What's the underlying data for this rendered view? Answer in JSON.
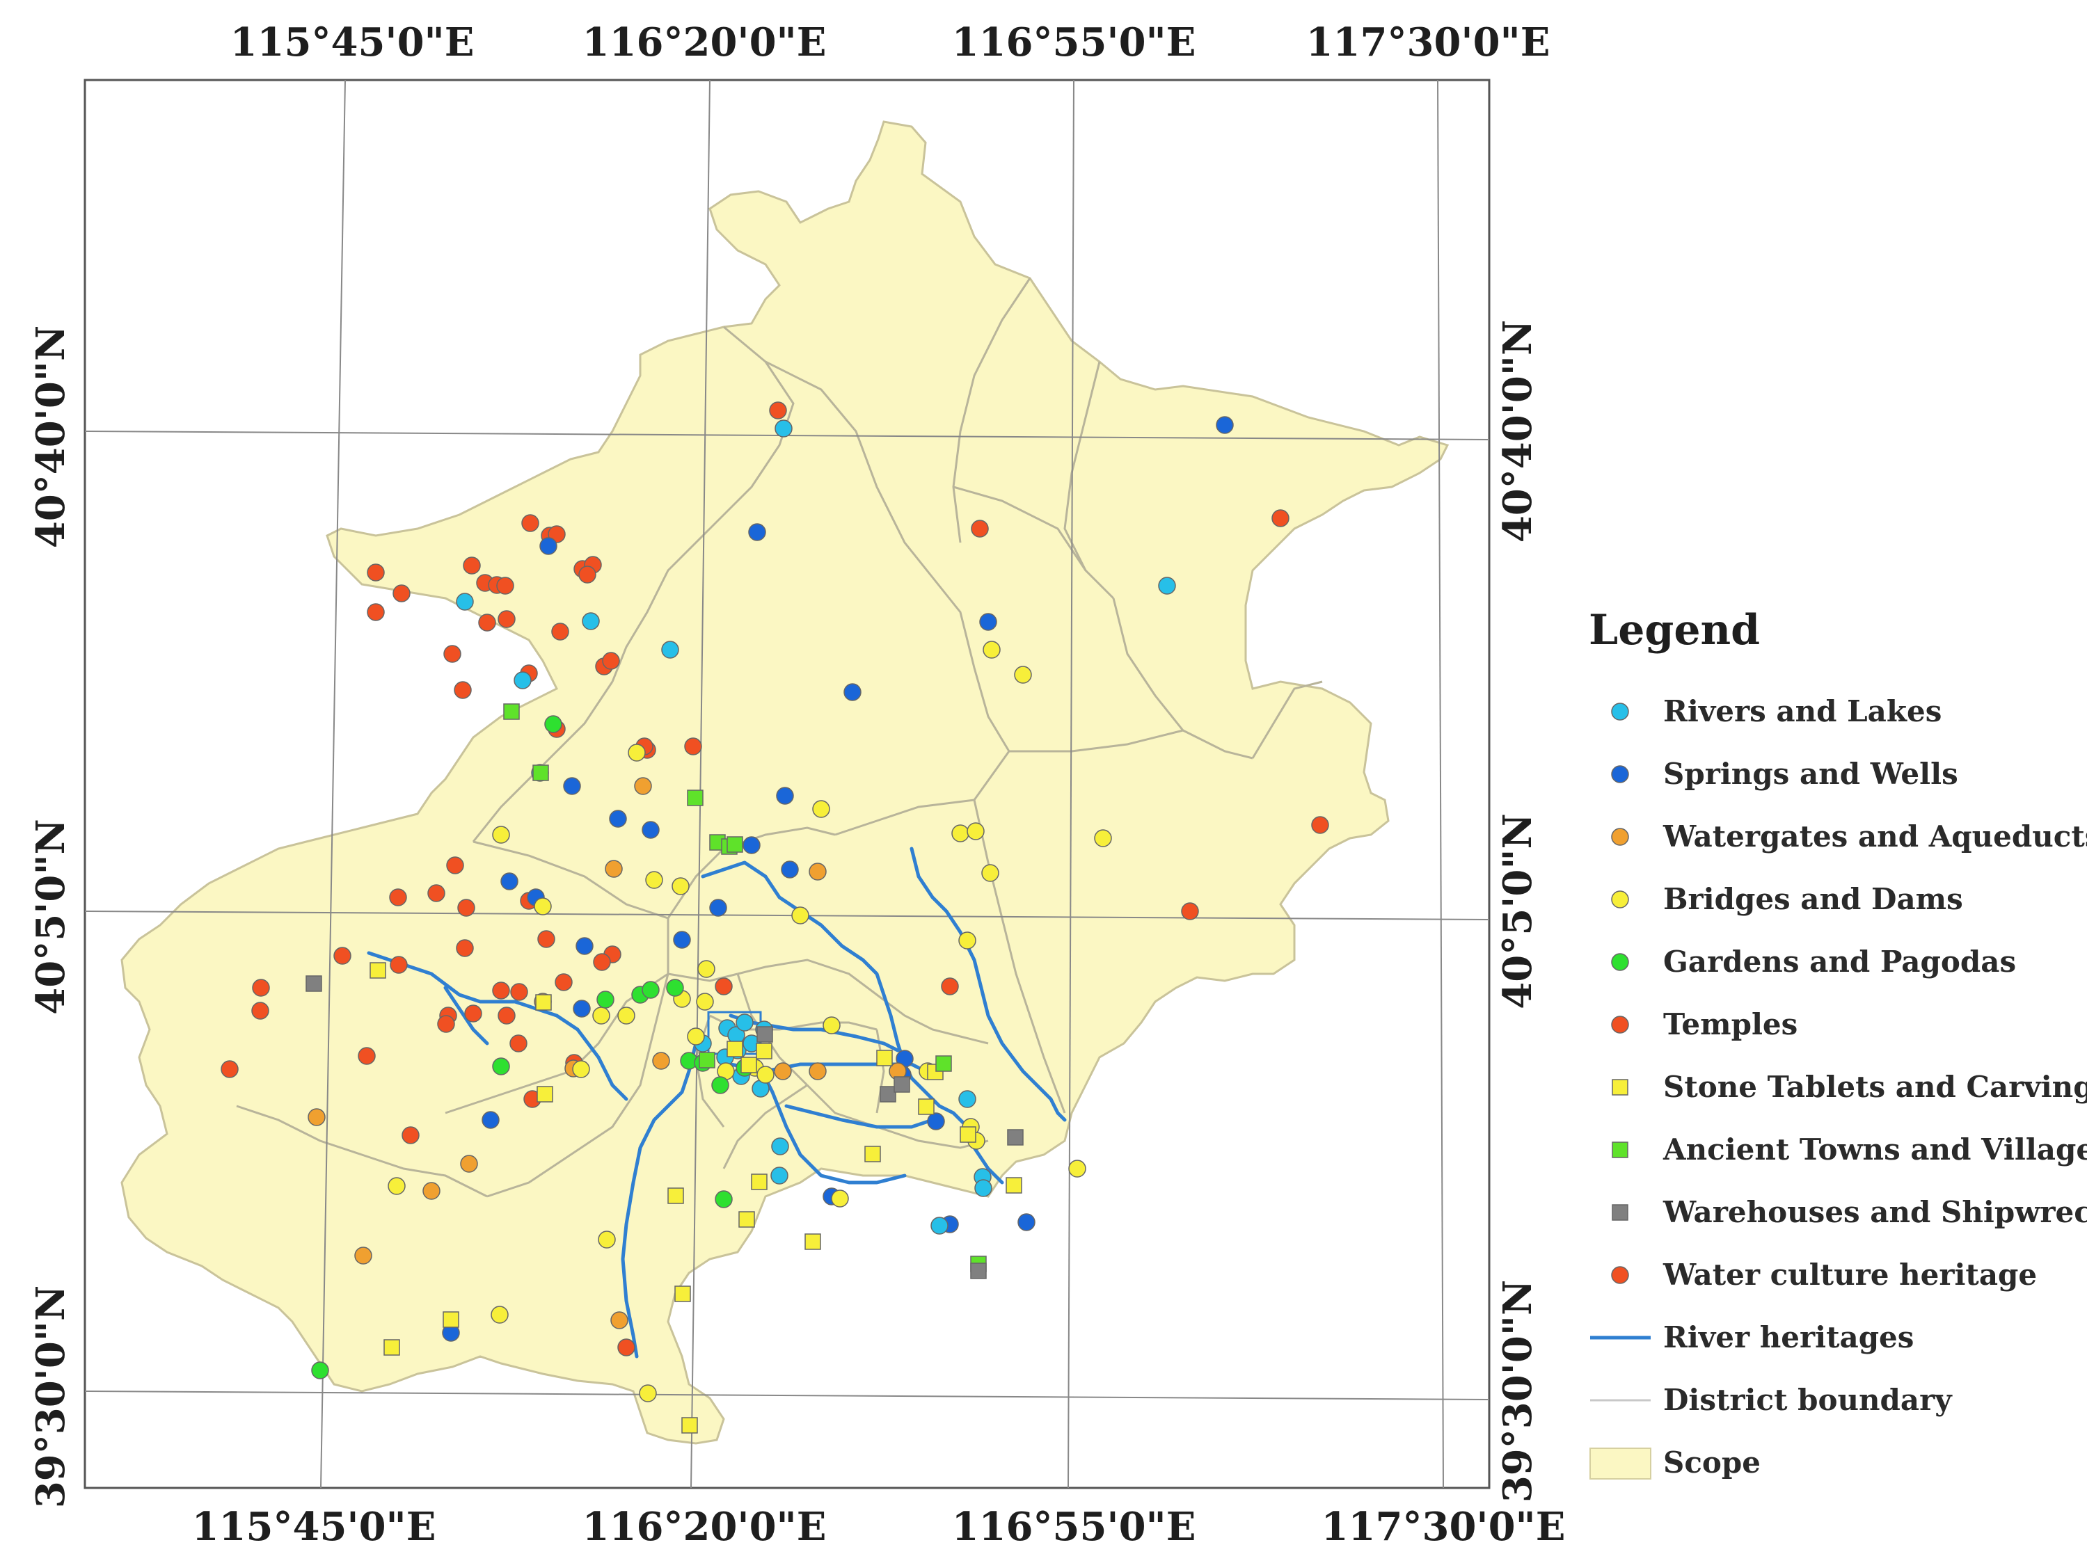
{
  "map": {
    "top_ticks": [
      "115°45'0\"E",
      "116°20'0\"E",
      "116°55'0\"E",
      "117°30'0\"E"
    ],
    "bottom_ticks": [
      "115°45'0\"E",
      "116°20'0\"E",
      "116°55'0\"E",
      "117°30'0\"E"
    ],
    "left_ticks": [
      "40°40'0\"N",
      "40°5'0\"N",
      "39°30'0\"N"
    ],
    "right_ticks": [
      "40°40'0\"N",
      "40°5'0\"N",
      "39°30'0\"N"
    ],
    "colors": {
      "scope_fill": "#fbf7c3",
      "district_line": "#b8b49a",
      "river": "#2f7fd1",
      "grid": "#888888"
    }
  },
  "legend": {
    "title": "Legend",
    "items": [
      {
        "label": "Rivers and Lakes",
        "symbol": "circle",
        "color": "#27bfe8"
      },
      {
        "label": "Springs and Wells",
        "symbol": "circle",
        "color": "#1a66d8"
      },
      {
        "label": "Watergates and Aqueducts",
        "symbol": "circle",
        "color": "#f0a030"
      },
      {
        "label": "Bridges and Dams",
        "symbol": "circle",
        "color": "#f7ef3a"
      },
      {
        "label": "Gardens and Pagodas",
        "symbol": "circle",
        "color": "#2ee030"
      },
      {
        "label": "Temples",
        "symbol": "circle",
        "color": "#f05022"
      },
      {
        "label": "Stone Tablets and Carvings",
        "symbol": "square",
        "color": "#f7ef3a"
      },
      {
        "label": "Ancient Towns and Villages",
        "symbol": "square",
        "color": "#5fe22a"
      },
      {
        "label": "Warehouses and Shipwrecks",
        "symbol": "square",
        "color": "#808080"
      },
      {
        "label": "Water culture heritage",
        "symbol": "circle",
        "color": "#f05022"
      },
      {
        "label": "River heritages",
        "symbol": "line",
        "color": "#2f7fd1"
      },
      {
        "label": "District boundary",
        "symbol": "thinline",
        "color": "#c8c8c8"
      },
      {
        "label": "Scope",
        "symbol": "box",
        "color": "#fbf7c3"
      }
    ]
  }
}
